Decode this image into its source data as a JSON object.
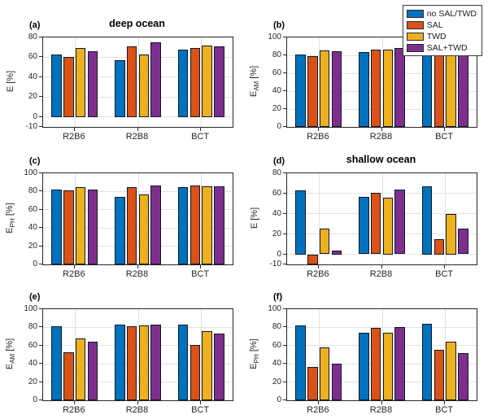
{
  "figure": {
    "background": "#ffffff",
    "axis_color": "#262626",
    "grid_color": "#e2e2e2",
    "legend": {
      "position": "top-right",
      "items": [
        {
          "label": "no SAL/TWD",
          "color": "#0072BD"
        },
        {
          "label": "SAL",
          "color": "#D95319"
        },
        {
          "label": "TWD",
          "color": "#EDB120"
        },
        {
          "label": "SAL+TWD",
          "color": "#7E2F8E"
        }
      ]
    }
  },
  "chart_data": [
    {
      "id": "a",
      "panel_label": "(a)",
      "type": "bar",
      "title": "deep ocean",
      "ylabel_base": "E",
      "ylabel_sub": "",
      "ylabel_unit": "[%]",
      "ylim": [
        -10,
        80
      ],
      "yticks": [
        -10,
        0,
        20,
        40,
        60,
        80
      ],
      "grid": true,
      "categories": [
        "R2B6",
        "R2B8",
        "BCT"
      ],
      "series": [
        {
          "name": "no SAL/TWD",
          "values": [
            63,
            57,
            67.5
          ]
        },
        {
          "name": "SAL",
          "values": [
            60.5,
            71,
            69.5
          ]
        },
        {
          "name": "TWD",
          "values": [
            69.5,
            63,
            72
          ]
        },
        {
          "name": "SAL+TWD",
          "values": [
            66,
            75,
            71
          ]
        }
      ]
    },
    {
      "id": "b",
      "panel_label": "(b)",
      "type": "bar",
      "title": "",
      "ylabel_base": "E",
      "ylabel_sub": "AM",
      "ylabel_unit": "[%]",
      "ylim": [
        0,
        100
      ],
      "yticks": [
        0,
        20,
        40,
        60,
        80,
        100
      ],
      "grid": true,
      "categories": [
        "R2B6",
        "R2B8",
        "BCT"
      ],
      "series": [
        {
          "name": "no SAL/TWD",
          "values": [
            81,
            83.5,
            83
          ]
        },
        {
          "name": "SAL",
          "values": [
            79,
            86.5,
            83
          ]
        },
        {
          "name": "TWD",
          "values": [
            85.5,
            86,
            86.5
          ]
        },
        {
          "name": "SAL+TWD",
          "values": [
            84.5,
            88.5,
            85.5
          ]
        }
      ]
    },
    {
      "id": "c",
      "panel_label": "(c)",
      "type": "bar",
      "title": "",
      "ylabel_base": "E",
      "ylabel_sub": "PH",
      "ylabel_unit": "[%]",
      "ylim": [
        0,
        100
      ],
      "yticks": [
        0,
        20,
        40,
        60,
        80,
        100
      ],
      "grid": true,
      "categories": [
        "R2B6",
        "R2B8",
        "BCT"
      ],
      "series": [
        {
          "name": "no SAL/TWD",
          "values": [
            82,
            74,
            84.5
          ]
        },
        {
          "name": "SAL",
          "values": [
            81.5,
            84.5,
            86.5
          ]
        },
        {
          "name": "TWD",
          "values": [
            84.5,
            77,
            85.5
          ]
        },
        {
          "name": "SAL+TWD",
          "values": [
            82,
            86.5,
            85.5
          ]
        }
      ]
    },
    {
      "id": "d",
      "panel_label": "(d)",
      "type": "bar",
      "title": "shallow ocean",
      "ylabel_base": "E",
      "ylabel_sub": "",
      "ylabel_unit": "[%]",
      "ylim": [
        -10,
        80
      ],
      "yticks": [
        -10,
        0,
        20,
        40,
        60,
        80
      ],
      "grid": true,
      "categories": [
        "R2B6",
        "R2B8",
        "BCT"
      ],
      "series": [
        {
          "name": "no SAL/TWD",
          "values": [
            63,
            57,
            67.5
          ]
        },
        {
          "name": "SAL",
          "values": [
            -10,
            61,
            15
          ]
        },
        {
          "name": "TWD",
          "values": [
            25.5,
            56,
            40
          ]
        },
        {
          "name": "SAL+TWD",
          "values": [
            4,
            64,
            25
          ]
        }
      ]
    },
    {
      "id": "e",
      "panel_label": "(e)",
      "type": "bar",
      "title": "",
      "ylabel_base": "E",
      "ylabel_sub": "AM",
      "ylabel_unit": "[%]",
      "ylim": [
        0,
        100
      ],
      "yticks": [
        0,
        20,
        40,
        60,
        80,
        100
      ],
      "grid": true,
      "categories": [
        "R2B6",
        "R2B8",
        "BCT"
      ],
      "series": [
        {
          "name": "no SAL/TWD",
          "values": [
            81.5,
            83.5,
            83
          ]
        },
        {
          "name": "SAL",
          "values": [
            52.5,
            81.5,
            61
          ]
        },
        {
          "name": "TWD",
          "values": [
            68,
            82,
            76
          ]
        },
        {
          "name": "SAL+TWD",
          "values": [
            64,
            83,
            73
          ]
        }
      ]
    },
    {
      "id": "f",
      "panel_label": "(f)",
      "type": "bar",
      "title": "",
      "ylabel_base": "E",
      "ylabel_sub": "PH",
      "ylabel_unit": "[%]",
      "ylim": [
        0,
        100
      ],
      "yticks": [
        0,
        20,
        40,
        60,
        80,
        100
      ],
      "grid": true,
      "categories": [
        "R2B6",
        "R2B8",
        "BCT"
      ],
      "series": [
        {
          "name": "no SAL/TWD",
          "values": [
            82,
            74,
            84
          ]
        },
        {
          "name": "SAL",
          "values": [
            36.5,
            79.5,
            55
          ]
        },
        {
          "name": "TWD",
          "values": [
            58,
            74.5,
            64.5
          ]
        },
        {
          "name": "SAL+TWD",
          "values": [
            40.5,
            80.5,
            52
          ]
        }
      ]
    }
  ]
}
